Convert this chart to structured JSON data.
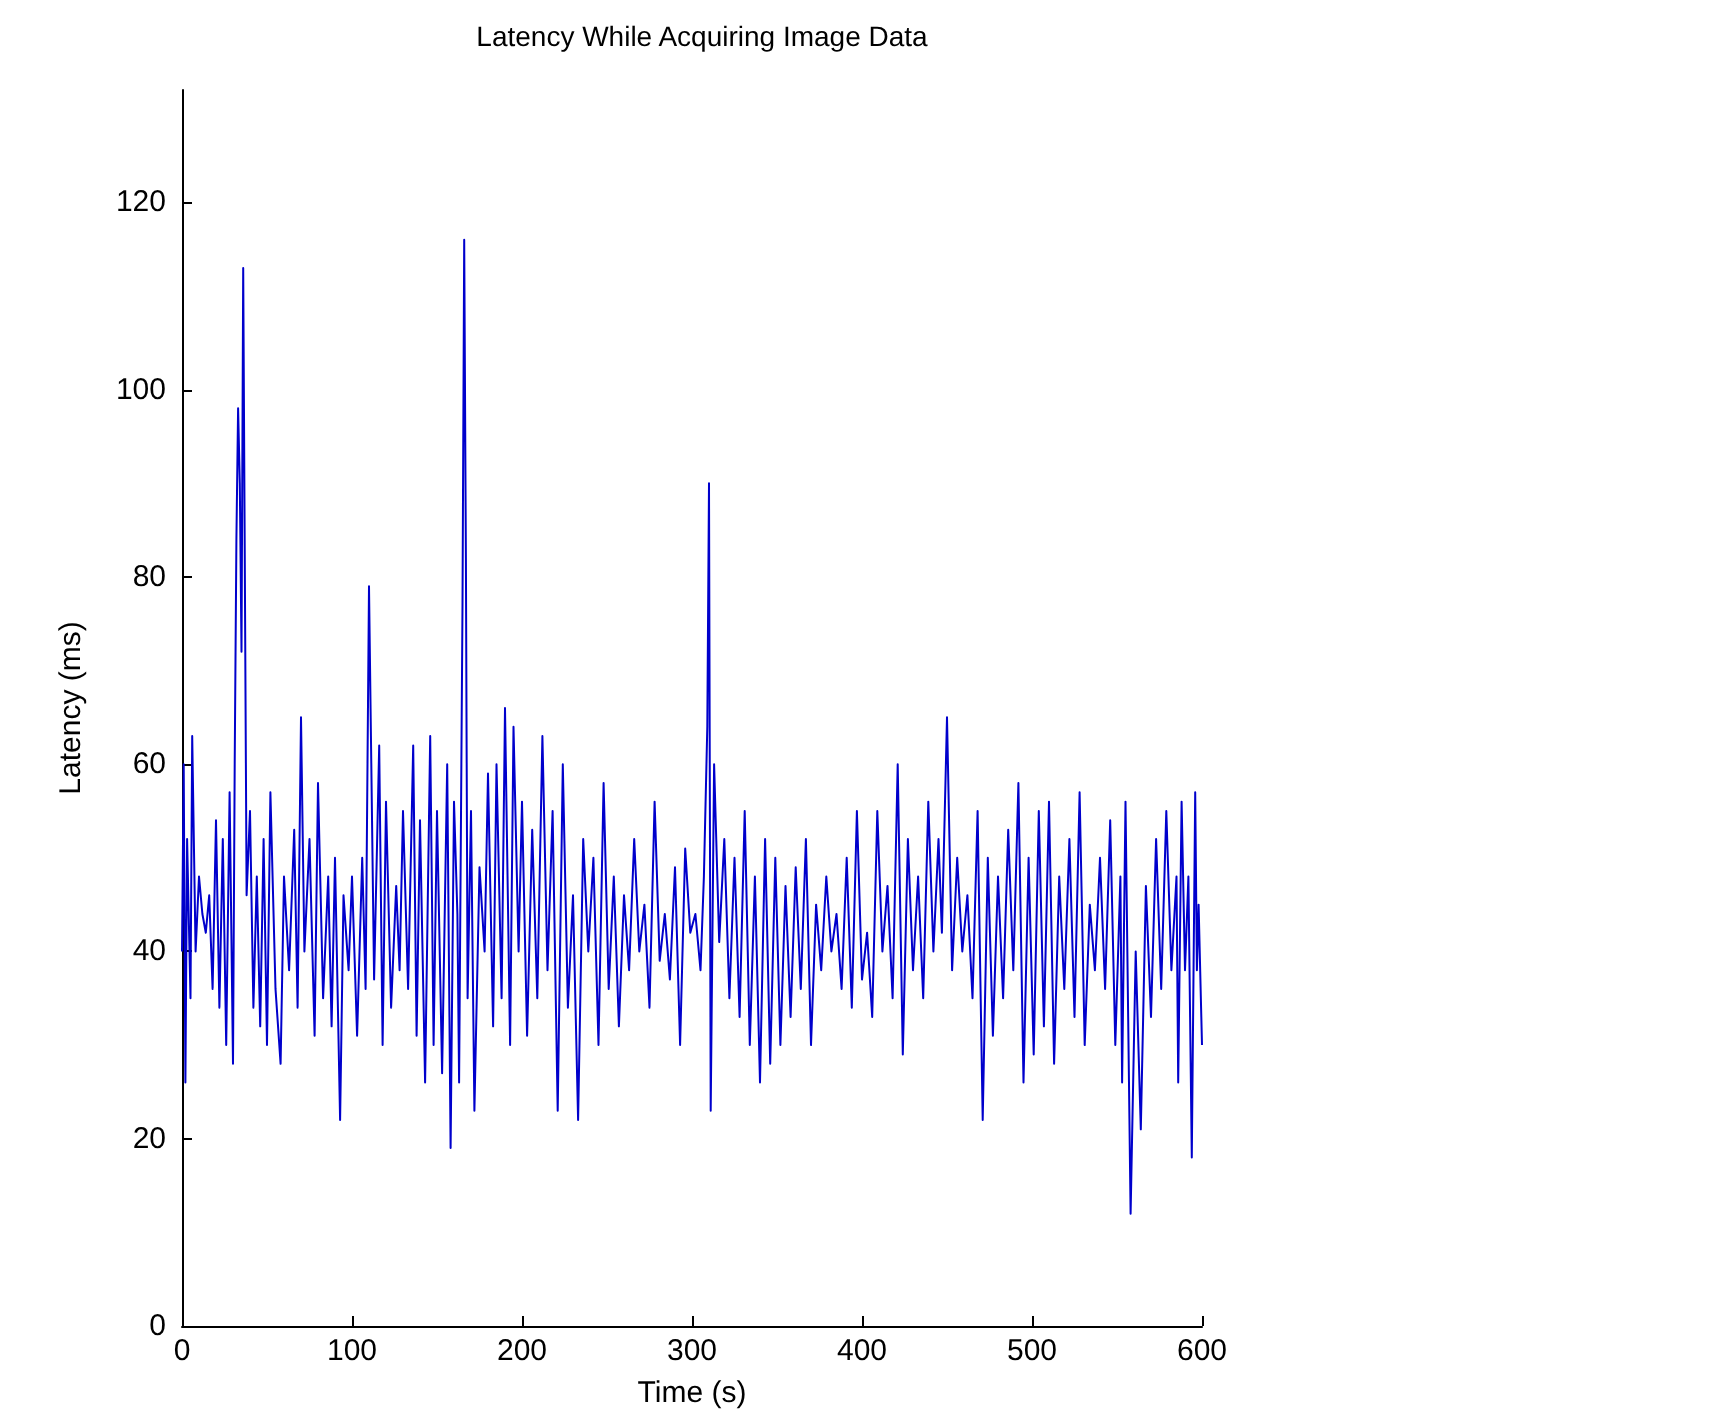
{
  "chart_data": {
    "type": "line",
    "title": "Latency While Acquiring Image Data",
    "xlabel": "Time (s)",
    "ylabel": "Latency (ms)",
    "xlim": [
      0,
      600
    ],
    "xticks": [
      0,
      100,
      200,
      300,
      400,
      500,
      600
    ],
    "ylim": [
      0,
      132
    ],
    "yticks": [
      0,
      20,
      40,
      60,
      80,
      100,
      120
    ],
    "grid": false,
    "marker": "none",
    "line_style": "solid",
    "series": [
      {
        "color": "#0000cc",
        "x": [
          0,
          1,
          2,
          3,
          5,
          6,
          8,
          10,
          12,
          14,
          16,
          18,
          20,
          22,
          24,
          26,
          28,
          30,
          31,
          32,
          33,
          34,
          35,
          36,
          38,
          40,
          42,
          44,
          46,
          48,
          50,
          52,
          55,
          58,
          60,
          63,
          66,
          68,
          70,
          72,
          75,
          78,
          80,
          83,
          86,
          88,
          90,
          93,
          95,
          98,
          100,
          103,
          106,
          108,
          110,
          113,
          116,
          118,
          120,
          123,
          126,
          128,
          130,
          133,
          136,
          138,
          140,
          143,
          146,
          148,
          150,
          153,
          156,
          158,
          160,
          162,
          163,
          165,
          166,
          167,
          168,
          170,
          172,
          175,
          178,
          180,
          183,
          185,
          188,
          190,
          193,
          195,
          198,
          200,
          203,
          206,
          209,
          212,
          215,
          218,
          221,
          224,
          227,
          230,
          233,
          236,
          239,
          242,
          245,
          248,
          251,
          254,
          257,
          260,
          263,
          266,
          269,
          272,
          275,
          278,
          281,
          284,
          287,
          290,
          293,
          296,
          299,
          302,
          305,
          307,
          309,
          310,
          311,
          313,
          316,
          319,
          322,
          325,
          328,
          331,
          334,
          337,
          340,
          343,
          346,
          349,
          352,
          355,
          358,
          361,
          364,
          367,
          370,
          373,
          376,
          379,
          382,
          385,
          388,
          391,
          394,
          397,
          400,
          403,
          406,
          409,
          412,
          415,
          418,
          421,
          424,
          427,
          430,
          433,
          436,
          439,
          442,
          445,
          447,
          450,
          453,
          456,
          459,
          462,
          465,
          468,
          471,
          474,
          477,
          480,
          483,
          486,
          489,
          492,
          495,
          498,
          501,
          504,
          507,
          510,
          513,
          516,
          519,
          522,
          525,
          528,
          531,
          534,
          537,
          540,
          543,
          546,
          549,
          552,
          553,
          555,
          558,
          561,
          564,
          567,
          570,
          573,
          576,
          579,
          582,
          585,
          586,
          588,
          590,
          592,
          594,
          596,
          597,
          598,
          600
        ],
        "values": [
          40,
          60,
          26,
          52,
          35,
          63,
          40,
          48,
          44,
          42,
          46,
          36,
          54,
          34,
          52,
          30,
          57,
          28,
          60,
          84,
          98,
          90,
          72,
          113,
          46,
          55,
          34,
          48,
          32,
          52,
          30,
          57,
          36,
          28,
          48,
          38,
          53,
          34,
          65,
          40,
          52,
          31,
          58,
          35,
          48,
          32,
          50,
          22,
          46,
          38,
          48,
          31,
          50,
          36,
          79,
          37,
          62,
          30,
          56,
          34,
          47,
          38,
          55,
          36,
          62,
          31,
          54,
          26,
          63,
          30,
          55,
          27,
          60,
          19,
          56,
          44,
          26,
          77,
          116,
          82,
          35,
          55,
          23,
          49,
          40,
          59,
          32,
          60,
          35,
          66,
          30,
          64,
          40,
          56,
          31,
          53,
          35,
          63,
          38,
          55,
          23,
          60,
          34,
          46,
          22,
          52,
          40,
          50,
          30,
          58,
          36,
          48,
          32,
          46,
          38,
          52,
          40,
          45,
          34,
          56,
          39,
          44,
          37,
          49,
          30,
          51,
          42,
          44,
          38,
          48,
          64,
          90,
          23,
          60,
          41,
          52,
          35,
          50,
          33,
          55,
          30,
          48,
          26,
          52,
          28,
          50,
          30,
          47,
          33,
          49,
          36,
          52,
          30,
          45,
          38,
          48,
          40,
          44,
          36,
          50,
          34,
          55,
          37,
          42,
          33,
          55,
          40,
          47,
          35,
          60,
          29,
          52,
          38,
          48,
          35,
          56,
          40,
          52,
          42,
          65,
          38,
          50,
          40,
          46,
          35,
          55,
          22,
          50,
          31,
          48,
          35,
          53,
          38,
          58,
          26,
          50,
          29,
          55,
          32,
          56,
          28,
          48,
          36,
          52,
          33,
          57,
          30,
          45,
          38,
          50,
          36,
          54,
          30,
          48,
          26,
          56,
          12,
          40,
          21,
          47,
          33,
          52,
          36,
          55,
          38,
          48,
          26,
          56,
          38,
          48,
          18,
          57,
          38,
          45,
          30
        ]
      }
    ]
  }
}
